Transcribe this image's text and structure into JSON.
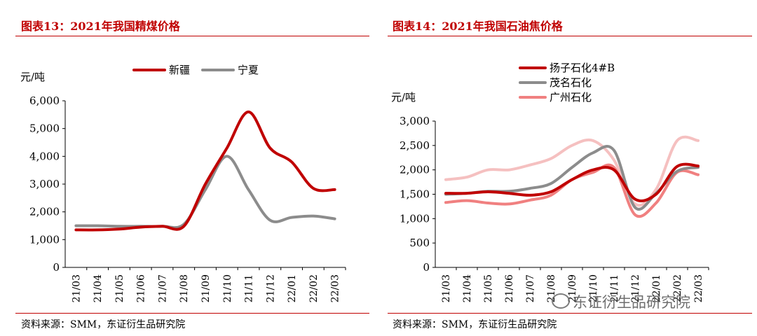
{
  "chart_data": [
    {
      "type": "line",
      "title": "图表13：2021年我国精煤价格",
      "ylabel": "元/吨",
      "ylim": [
        0,
        6000
      ],
      "yticks": [
        0,
        1000,
        2000,
        3000,
        4000,
        5000,
        6000
      ],
      "ytick_labels": [
        "0",
        "1,000",
        "2,000",
        "3,000",
        "4,000",
        "5,000",
        "6,000"
      ],
      "categories": [
        "21/03",
        "21/04",
        "21/05",
        "21/06",
        "21/07",
        "21/08",
        "21/09",
        "21/10",
        "21/11",
        "21/12",
        "22/01",
        "22/02",
        "22/03"
      ],
      "legend_position": "top",
      "series": [
        {
          "name": "新疆",
          "color": "#c00000",
          "values": [
            1350,
            1350,
            1380,
            1450,
            1480,
            1480,
            3000,
            4300,
            5600,
            4300,
            3800,
            2850,
            2800
          ]
        },
        {
          "name": "宁夏",
          "color": "#8c8c8c",
          "values": [
            1500,
            1500,
            1480,
            1480,
            1480,
            1550,
            2800,
            4000,
            2800,
            1700,
            1800,
            1850,
            1750
          ]
        }
      ],
      "source": "资料来源：SMM，东证衍生品研究院"
    },
    {
      "type": "line",
      "title": "图表14：2021年我国石油焦价格",
      "ylabel": "元/吨",
      "ylim": [
        0,
        3000
      ],
      "yticks": [
        0,
        500,
        1000,
        1500,
        2000,
        2500,
        3000
      ],
      "ytick_labels": [
        "0",
        "500",
        "1,000",
        "1,500",
        "2,000",
        "2,500",
        "3,000"
      ],
      "categories": [
        "21/03",
        "21/04",
        "21/05",
        "21/06",
        "21/07",
        "21/08",
        "21/09",
        "21/10",
        "21/11",
        "21/12",
        "22/01",
        "22/02",
        "22/03"
      ],
      "legend_position": "top-right",
      "series": [
        {
          "name": "扬子石化4#B",
          "color": "#c00000",
          "values": [
            1520,
            1520,
            1550,
            1520,
            1480,
            1550,
            1800,
            2000,
            2000,
            1400,
            1500,
            2070,
            2080
          ]
        },
        {
          "name": "茂名石化",
          "color": "#8c8c8c",
          "values": [
            1500,
            1520,
            1560,
            1560,
            1620,
            1720,
            2050,
            2350,
            2400,
            1230,
            1520,
            1970,
            2050
          ]
        },
        {
          "name": "广州石化",
          "color": "#f08080",
          "values": [
            1330,
            1370,
            1320,
            1300,
            1380,
            1480,
            1800,
            1950,
            2050,
            1080,
            1320,
            1950,
            1900
          ]
        },
        {
          "name": "",
          "color": "#f5c0c0",
          "values": [
            1800,
            1850,
            2000,
            2000,
            2100,
            2230,
            2500,
            2600,
            2200,
            1300,
            1600,
            2600,
            2600
          ]
        }
      ],
      "source": "资料来源：SMM，东证衍生品研究院"
    }
  ],
  "watermark": "东证衍生品研究院"
}
